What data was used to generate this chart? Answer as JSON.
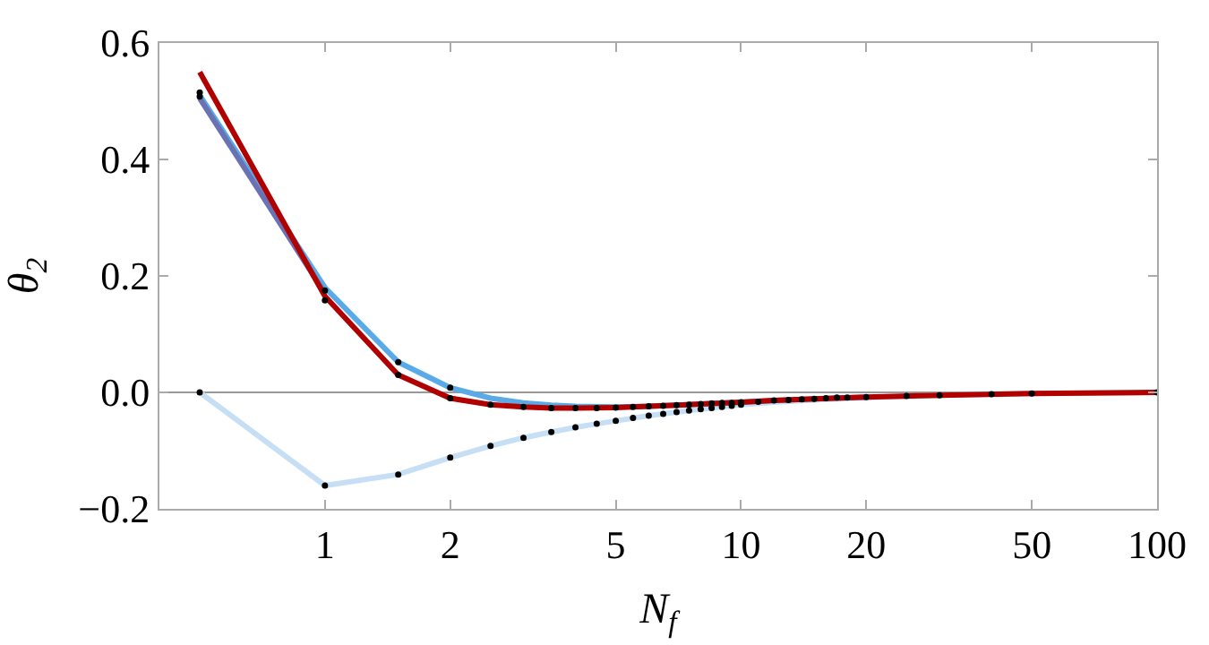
{
  "chart_data": {
    "type": "line",
    "xlabel": "N$_{f}$",
    "ylabel": "θ$_{2}$",
    "log": "x",
    "grid": false,
    "xlim": [
      0.4,
      100
    ],
    "xticks": [
      1,
      2,
      5,
      10,
      20,
      50,
      100
    ],
    "ylim": [
      -0.2,
      0.6
    ],
    "yticks": [
      {
        "value": -0.2,
        "label": "−0.2"
      },
      {
        "value": 0,
        "label": "0.0"
      },
      0.2,
      0.4,
      0.6
    ],
    "ref_lines": [
      {
        "axis": "y",
        "value": 0,
        "color": "#999999"
      }
    ],
    "series": [
      {
        "marker": "none",
        "color": "#c6dff5",
        "x": [
          0.5,
          1,
          1.5,
          2,
          2.5,
          3,
          3.5,
          4,
          4.5,
          5,
          6,
          7,
          8,
          10,
          12,
          15,
          20,
          30,
          50,
          100
        ],
        "values": [
          0.0,
          -0.16,
          -0.141,
          -0.112,
          -0.092,
          -0.078,
          -0.068,
          -0.06,
          -0.054,
          -0.049,
          -0.04,
          -0.034,
          -0.029,
          -0.021,
          -0.017,
          -0.013,
          -0.009,
          -0.005,
          -0.002,
          0.0
        ]
      },
      {
        "marker": "none",
        "color": "#5aaae8",
        "x": [
          0.5,
          1,
          1.5,
          2,
          2.5,
          3,
          3.5,
          4,
          5,
          6,
          7,
          8,
          10,
          12,
          15,
          20
        ],
        "values": [
          0.51,
          0.18,
          0.052,
          0.008,
          -0.01,
          -0.018,
          -0.022,
          -0.024,
          -0.025,
          -0.024,
          -0.022,
          -0.02,
          -0.017,
          -0.014,
          -0.011,
          -0.008
        ]
      },
      {
        "marker": "none",
        "color": "#6a72b4",
        "x": [
          0.5,
          1
        ],
        "values": [
          0.505,
          0.17
        ]
      },
      {
        "marker": "none",
        "color": "#b00000",
        "x": [
          0.5,
          1,
          1.5,
          2,
          2.5,
          3,
          3.5,
          4,
          5,
          6,
          7,
          8,
          10,
          12,
          15,
          20,
          30,
          50,
          100
        ],
        "values": [
          0.55,
          0.165,
          0.03,
          -0.01,
          -0.021,
          -0.025,
          -0.027,
          -0.027,
          -0.026,
          -0.024,
          -0.022,
          -0.02,
          -0.017,
          -0.014,
          -0.011,
          -0.008,
          -0.005,
          -0.002,
          0.0
        ]
      },
      {
        "type": "scatter",
        "marker": "circle",
        "color": "#000000",
        "x": [
          0.5,
          1,
          1.5,
          2,
          2.5,
          3,
          3.5,
          4,
          4.5,
          5,
          5.5,
          6,
          6.5,
          7,
          7.5,
          8,
          8.5,
          9,
          9.5,
          10
        ],
        "values": [
          0.0,
          -0.16,
          -0.141,
          -0.112,
          -0.092,
          -0.078,
          -0.068,
          -0.06,
          -0.054,
          -0.049,
          -0.044,
          -0.04,
          -0.037,
          -0.034,
          -0.031,
          -0.029,
          -0.027,
          -0.025,
          -0.023,
          -0.021
        ]
      },
      {
        "type": "scatter",
        "marker": "circle",
        "color": "#000000",
        "x": [
          0.5,
          1,
          1.5,
          2,
          2.5,
          3,
          3.5,
          4,
          4.5,
          5,
          5.5,
          6,
          6.5,
          7,
          7.5,
          8,
          8.5,
          9,
          9.5,
          10,
          11,
          12,
          13,
          14,
          15,
          16,
          17,
          18,
          20,
          25,
          30,
          40,
          50,
          100
        ],
        "values": [
          0.515,
          0.158,
          0.03,
          -0.01,
          -0.021,
          -0.025,
          -0.027,
          -0.027,
          -0.027,
          -0.026,
          -0.025,
          -0.024,
          -0.023,
          -0.022,
          -0.021,
          -0.02,
          -0.019,
          -0.018,
          -0.018,
          -0.017,
          -0.016,
          -0.014,
          -0.013,
          -0.012,
          -0.011,
          -0.01,
          -0.009,
          -0.009,
          -0.008,
          -0.006,
          -0.005,
          -0.003,
          -0.002,
          0.0
        ]
      },
      {
        "type": "scatter",
        "marker": "circle",
        "color": "#000000",
        "x": [
          0.5,
          1,
          1.5,
          2
        ],
        "values": [
          0.508,
          0.175,
          0.052,
          0.008
        ]
      }
    ]
  }
}
